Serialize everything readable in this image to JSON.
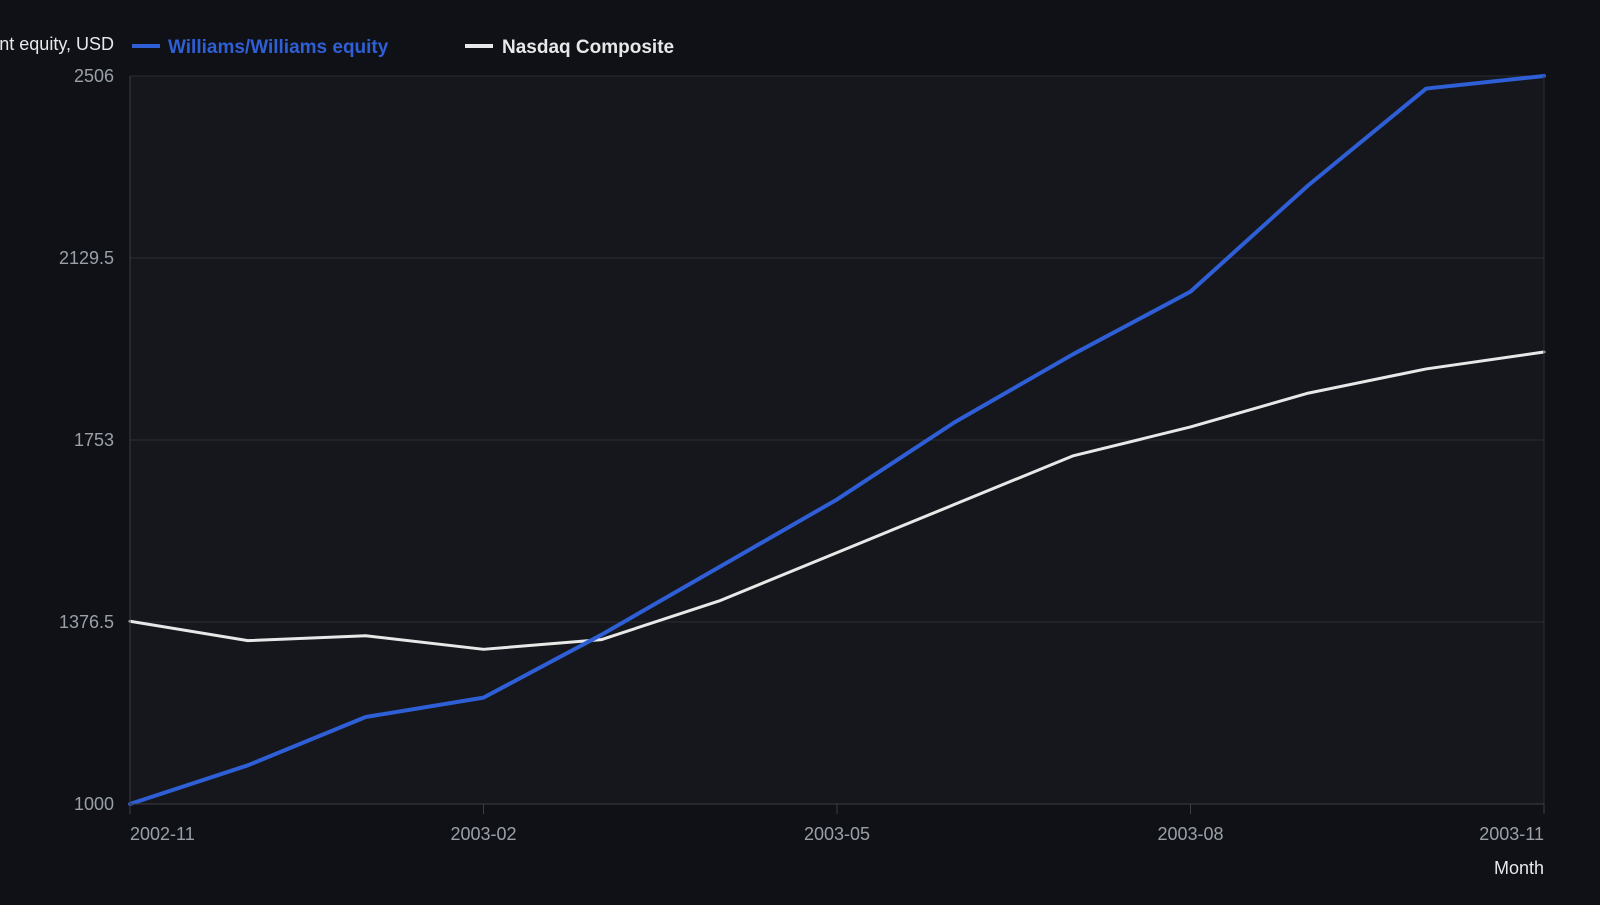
{
  "chart_data": {
    "type": "line",
    "title": "",
    "ylabel": "Account equity, USD",
    "xlabel": "Month",
    "x": [
      "2002-11",
      "2002-12",
      "2003-01",
      "2003-02",
      "2003-03",
      "2003-04",
      "2003-05",
      "2003-06",
      "2003-07",
      "2003-08",
      "2003-09",
      "2003-10",
      "2003-11"
    ],
    "x_ticks": [
      "2002-11",
      "2003-02",
      "2003-05",
      "2003-08",
      "2003-11"
    ],
    "y_ticks": [
      "1000",
      "1376.5",
      "1753",
      "2129.5",
      "2506"
    ],
    "ylim": [
      1000,
      2506
    ],
    "grid": true,
    "legend_position": "top-left",
    "series": [
      {
        "name": "Williams/Williams equity",
        "color": "#2f5fd6",
        "values": [
          1000,
          1080,
          1180,
          1220,
          1350,
          1490,
          1630,
          1790,
          1930,
          2060,
          2280,
          2480,
          2506
        ]
      },
      {
        "name": "Nasdaq Composite",
        "color": "#e8e8e8",
        "values": [
          1378,
          1338,
          1348,
          1320,
          1340,
          1420,
          1520,
          1620,
          1720,
          1780,
          1850,
          1900,
          1935
        ]
      }
    ]
  },
  "colors": {
    "background": "#0f1116",
    "plot_background": "#15171c",
    "grid": "#2a2d33",
    "axis": "#3a3d44",
    "tick_text": "#9aa0a8",
    "title_text": "#e6e8eb"
  }
}
